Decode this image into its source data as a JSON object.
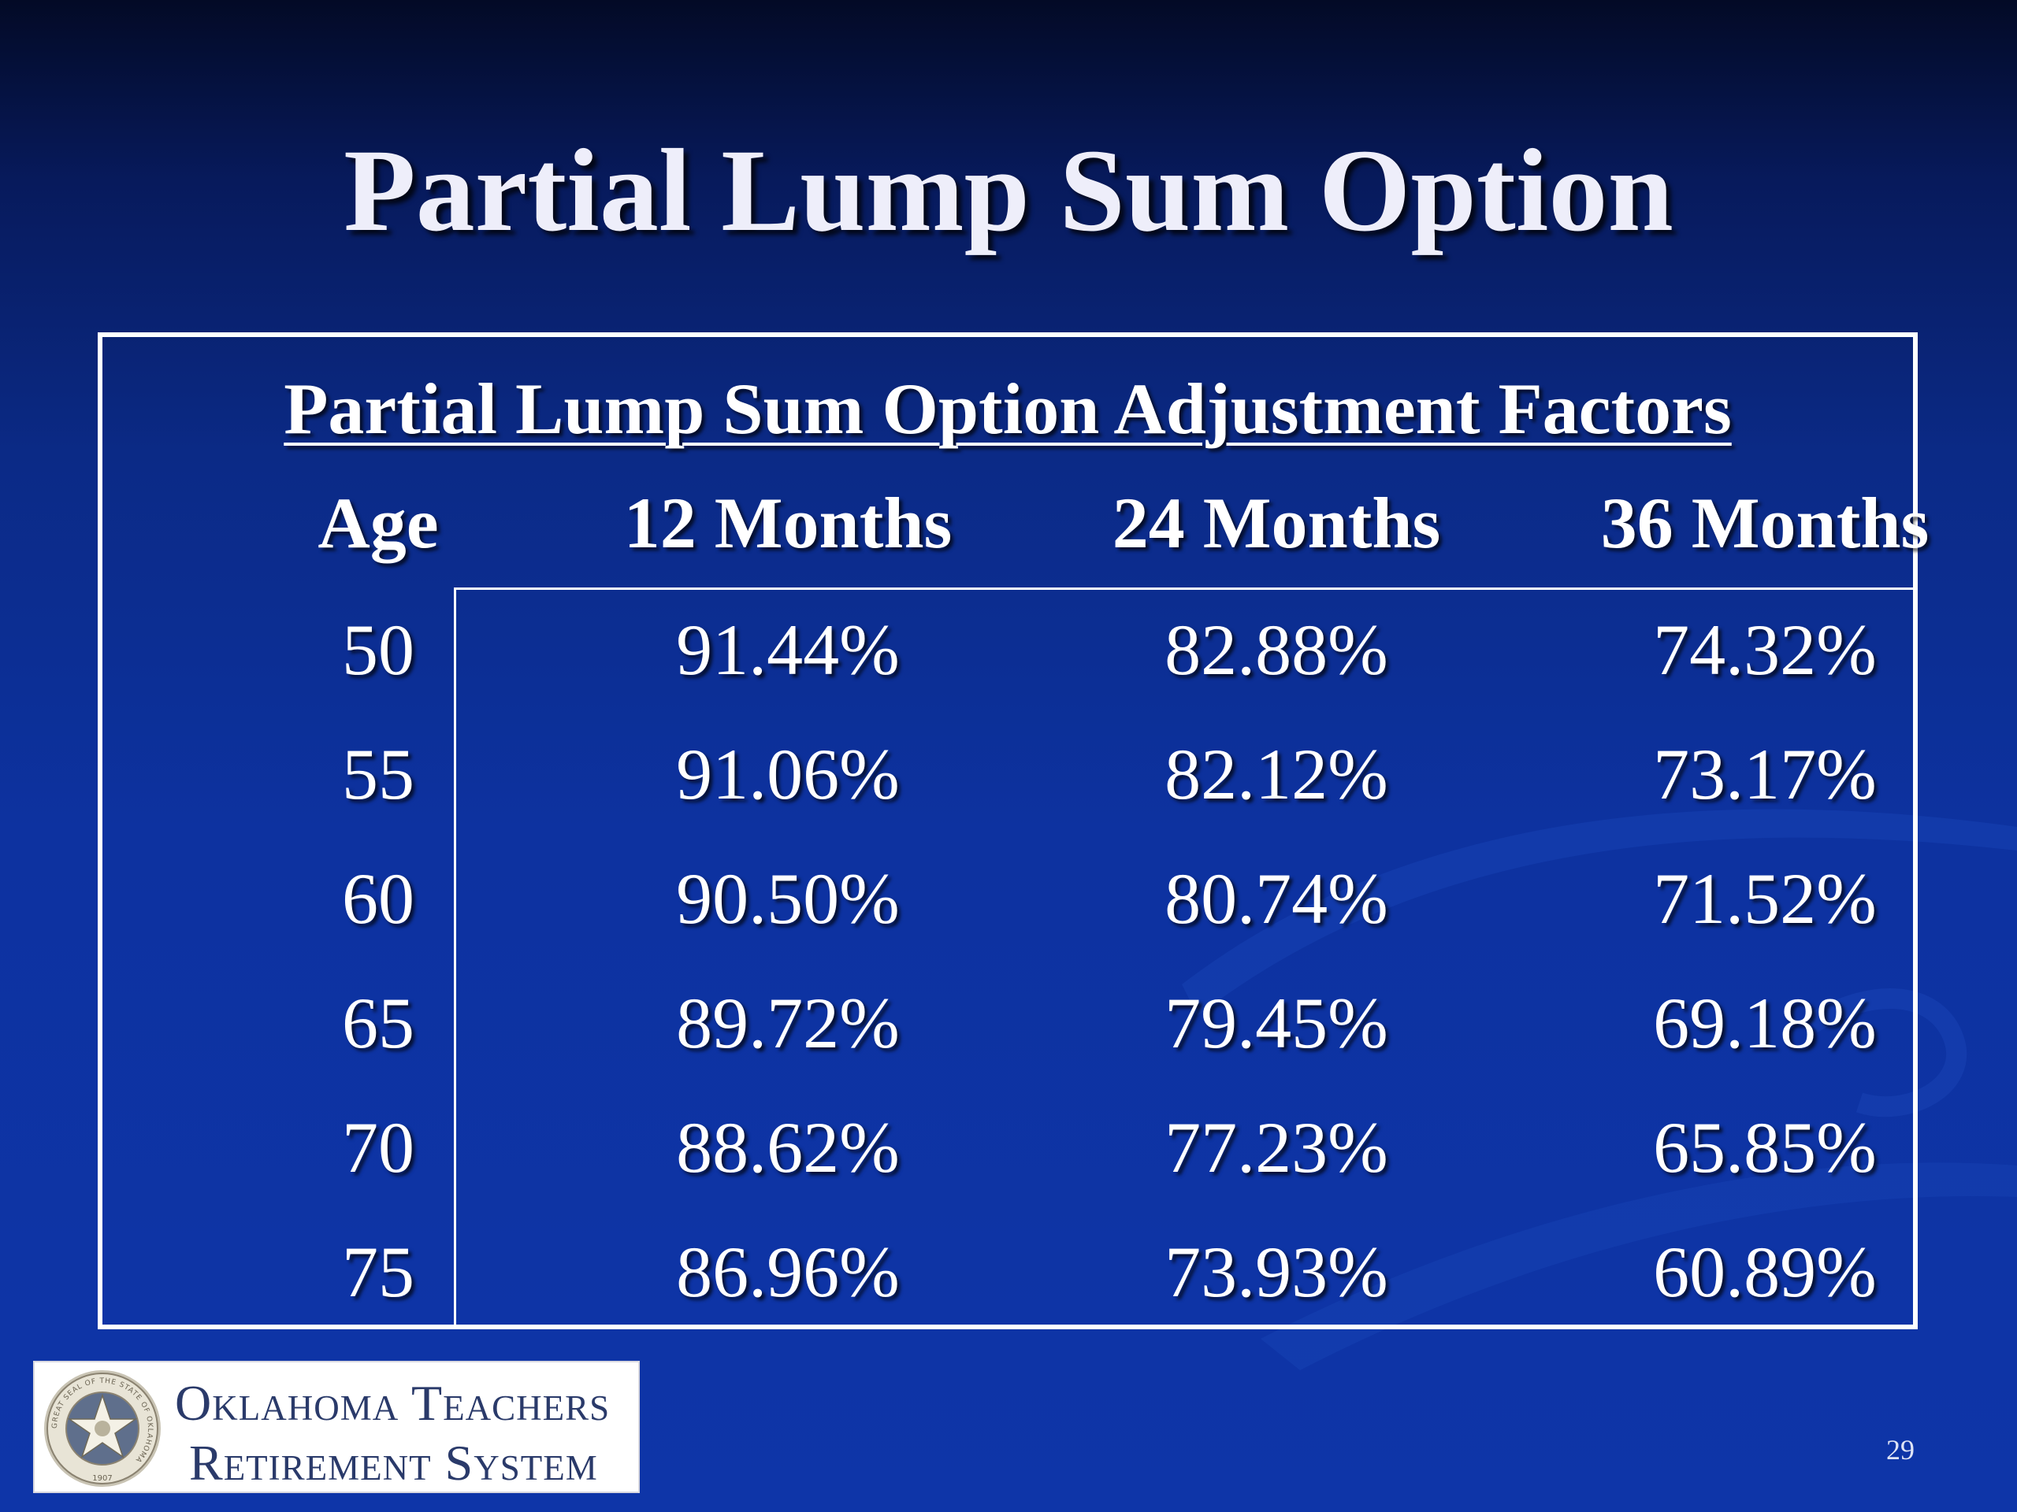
{
  "slide": {
    "title": "Partial Lump Sum Option",
    "page_number": "29"
  },
  "table": {
    "caption": "Partial Lump Sum Option Adjustment Factors",
    "headers": [
      "Age",
      "12 Months",
      "24 Months",
      "36 Months"
    ],
    "rows": [
      [
        "50",
        "91.44%",
        "82.88%",
        "74.32%"
      ],
      [
        "55",
        "91.06%",
        "82.12%",
        "73.17%"
      ],
      [
        "60",
        "90.50%",
        "80.74%",
        "71.52%"
      ],
      [
        "65",
        "89.72%",
        "79.45%",
        "69.18%"
      ],
      [
        "70",
        "88.62%",
        "77.23%",
        "65.85%"
      ],
      [
        "75",
        "86.96%",
        "73.93%",
        "60.89%"
      ]
    ]
  },
  "logo": {
    "line1": "Oklahoma Teachers",
    "line2": "Retirement System",
    "seal_text": "GREAT SEAL OF THE STATE OF OKLAHOMA",
    "seal_year": "1907"
  },
  "colors": {
    "background_top": "#030a26",
    "background_main": "#0d32a0",
    "text": "#ffffff",
    "logo_text": "#2a3a6a"
  }
}
